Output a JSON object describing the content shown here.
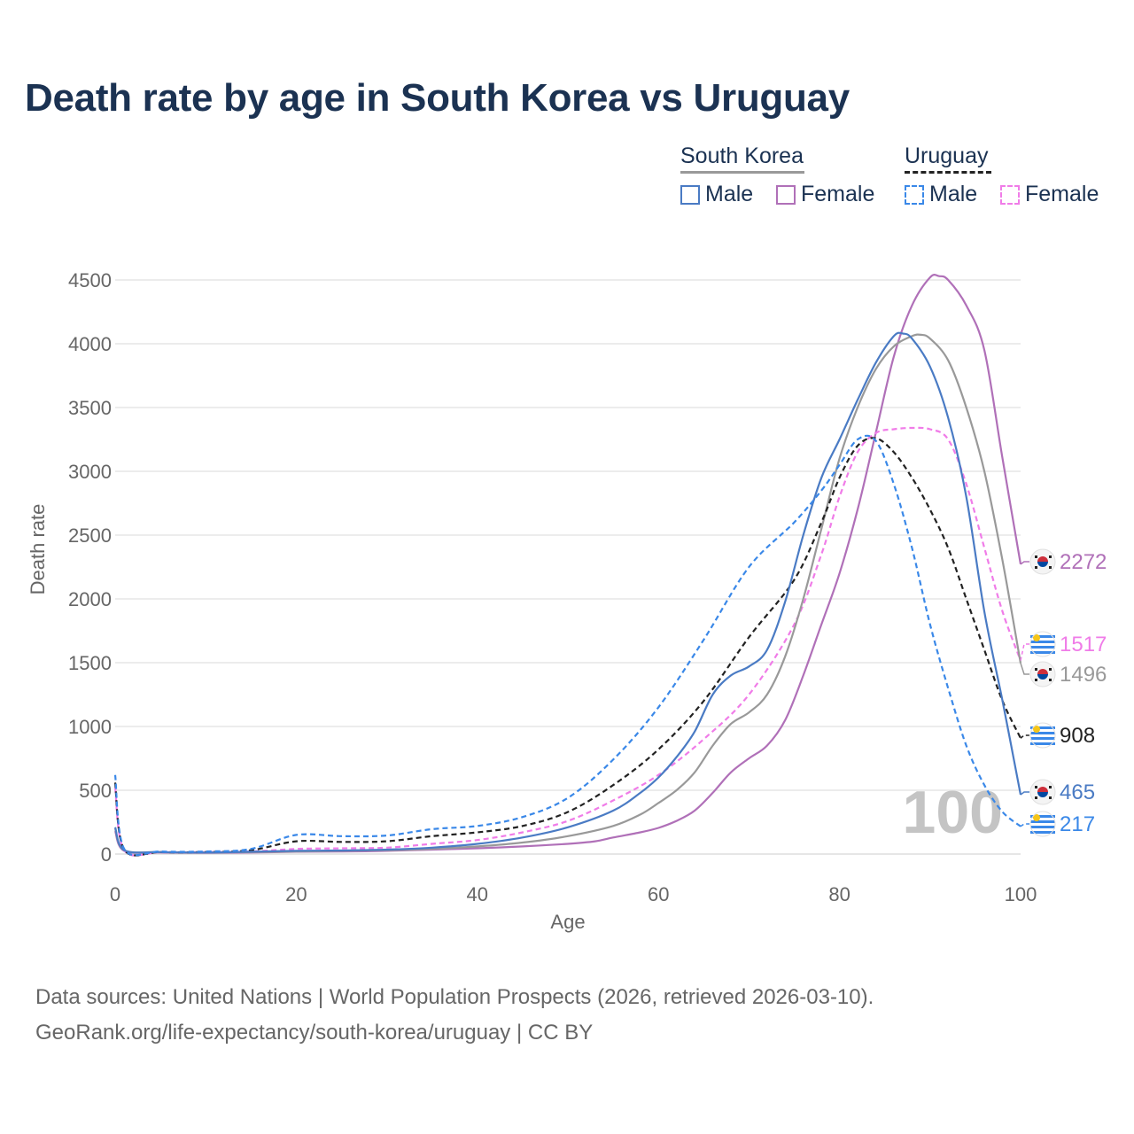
{
  "title": "Death rate by age in South Korea vs Uruguay",
  "legend": {
    "groups": [
      {
        "name": "South Korea",
        "items": [
          {
            "label": "Male",
            "color": "#4a7bc4",
            "dashed": false
          },
          {
            "label": "Female",
            "color": "#b070b8",
            "dashed": false
          }
        ]
      },
      {
        "name": "Uruguay",
        "items": [
          {
            "label": "Male",
            "color": "#3a88e8",
            "dashed": true
          },
          {
            "label": "Female",
            "color": "#f07ce8",
            "dashed": true
          }
        ]
      }
    ]
  },
  "watermark": "100",
  "sources": {
    "line1": "Data sources: United Nations | World Population Prospects (2026, retrieved 2026-03-10).",
    "line2": "GeoRank.org/life-expectancy/south-korea/uruguay | CC BY"
  },
  "chart_data": {
    "type": "line",
    "title": "Death rate by age in South Korea vs Uruguay",
    "xlabel": "Age",
    "ylabel": "Death rate",
    "xlim": [
      0,
      100
    ],
    "ylim": [
      0,
      4500
    ],
    "xticks": [
      0,
      20,
      40,
      60,
      80,
      100
    ],
    "yticks": [
      0,
      500,
      1000,
      1500,
      2000,
      2500,
      3000,
      3500,
      4000,
      4500
    ],
    "series": [
      {
        "name": "South Korea Female",
        "country": "South Korea",
        "color": "#b070b8",
        "dashed": false,
        "end_label": "2272",
        "end_value": 2272,
        "points": [
          [
            0,
            180
          ],
          [
            1,
            25
          ],
          [
            5,
            12
          ],
          [
            10,
            10
          ],
          [
            15,
            12
          ],
          [
            20,
            18
          ],
          [
            25,
            20
          ],
          [
            30,
            25
          ],
          [
            35,
            35
          ],
          [
            40,
            45
          ],
          [
            45,
            60
          ],
          [
            50,
            80
          ],
          [
            53,
            100
          ],
          [
            55,
            130
          ],
          [
            58,
            170
          ],
          [
            60,
            205
          ],
          [
            62,
            260
          ],
          [
            64,
            340
          ],
          [
            66,
            480
          ],
          [
            68,
            640
          ],
          [
            70,
            750
          ],
          [
            72,
            850
          ],
          [
            74,
            1050
          ],
          [
            76,
            1400
          ],
          [
            78,
            1800
          ],
          [
            80,
            2200
          ],
          [
            82,
            2700
          ],
          [
            84,
            3300
          ],
          [
            86,
            3900
          ],
          [
            88,
            4300
          ],
          [
            90,
            4520
          ],
          [
            91,
            4530
          ],
          [
            92,
            4500
          ],
          [
            94,
            4300
          ],
          [
            96,
            3950
          ],
          [
            98,
            3100
          ],
          [
            100,
            2272
          ]
        ]
      },
      {
        "name": "Uruguay Female",
        "country": "Uruguay",
        "color": "#f07ce8",
        "dashed": true,
        "end_label": "1517",
        "end_value": 1517,
        "points": [
          [
            0,
            520
          ],
          [
            1,
            30
          ],
          [
            5,
            15
          ],
          [
            10,
            15
          ],
          [
            15,
            20
          ],
          [
            20,
            40
          ],
          [
            25,
            45
          ],
          [
            30,
            50
          ],
          [
            35,
            80
          ],
          [
            40,
            110
          ],
          [
            45,
            170
          ],
          [
            50,
            260
          ],
          [
            55,
            420
          ],
          [
            60,
            620
          ],
          [
            65,
            900
          ],
          [
            70,
            1250
          ],
          [
            75,
            1800
          ],
          [
            78,
            2350
          ],
          [
            80,
            2800
          ],
          [
            82,
            3150
          ],
          [
            84,
            3300
          ],
          [
            86,
            3330
          ],
          [
            88,
            3340
          ],
          [
            90,
            3330
          ],
          [
            92,
            3250
          ],
          [
            94,
            2900
          ],
          [
            96,
            2400
          ],
          [
            98,
            1900
          ],
          [
            100,
            1517
          ]
        ]
      },
      {
        "name": "South Korea Total",
        "country": "South Korea",
        "color": "#999999",
        "dashed": false,
        "end_label": "1496",
        "end_value": 1496,
        "points": [
          [
            0,
            200
          ],
          [
            1,
            30
          ],
          [
            5,
            15
          ],
          [
            10,
            12
          ],
          [
            15,
            15
          ],
          [
            20,
            20
          ],
          [
            25,
            25
          ],
          [
            30,
            30
          ],
          [
            35,
            40
          ],
          [
            40,
            60
          ],
          [
            45,
            90
          ],
          [
            50,
            140
          ],
          [
            55,
            220
          ],
          [
            58,
            310
          ],
          [
            60,
            400
          ],
          [
            62,
            500
          ],
          [
            64,
            640
          ],
          [
            66,
            850
          ],
          [
            68,
            1020
          ],
          [
            70,
            1110
          ],
          [
            72,
            1250
          ],
          [
            74,
            1550
          ],
          [
            76,
            2000
          ],
          [
            78,
            2550
          ],
          [
            80,
            3100
          ],
          [
            82,
            3500
          ],
          [
            84,
            3800
          ],
          [
            86,
            3980
          ],
          [
            88,
            4060
          ],
          [
            89,
            4070
          ],
          [
            90,
            4040
          ],
          [
            92,
            3870
          ],
          [
            94,
            3500
          ],
          [
            96,
            3000
          ],
          [
            98,
            2300
          ],
          [
            100,
            1496
          ]
        ]
      },
      {
        "name": "Uruguay Total",
        "country": "Uruguay",
        "color": "#222222",
        "dashed": true,
        "end_label": "908",
        "end_value": 908,
        "points": [
          [
            0,
            560
          ],
          [
            1,
            35
          ],
          [
            5,
            15
          ],
          [
            10,
            15
          ],
          [
            15,
            30
          ],
          [
            20,
            100
          ],
          [
            25,
            95
          ],
          [
            30,
            100
          ],
          [
            35,
            140
          ],
          [
            40,
            170
          ],
          [
            45,
            220
          ],
          [
            50,
            330
          ],
          [
            55,
            540
          ],
          [
            60,
            820
          ],
          [
            65,
            1200
          ],
          [
            70,
            1700
          ],
          [
            75,
            2150
          ],
          [
            78,
            2600
          ],
          [
            80,
            2950
          ],
          [
            82,
            3200
          ],
          [
            84,
            3260
          ],
          [
            86,
            3150
          ],
          [
            88,
            2950
          ],
          [
            90,
            2700
          ],
          [
            92,
            2400
          ],
          [
            94,
            2000
          ],
          [
            96,
            1600
          ],
          [
            98,
            1200
          ],
          [
            100,
            908
          ]
        ]
      },
      {
        "name": "South Korea Male",
        "country": "South Korea",
        "color": "#4a7bc4",
        "dashed": false,
        "end_label": "465",
        "end_value": 465,
        "points": [
          [
            0,
            210
          ],
          [
            1,
            30
          ],
          [
            5,
            15
          ],
          [
            10,
            12
          ],
          [
            15,
            18
          ],
          [
            20,
            25
          ],
          [
            25,
            28
          ],
          [
            30,
            35
          ],
          [
            35,
            50
          ],
          [
            40,
            80
          ],
          [
            45,
            130
          ],
          [
            50,
            210
          ],
          [
            55,
            340
          ],
          [
            58,
            480
          ],
          [
            60,
            600
          ],
          [
            62,
            760
          ],
          [
            64,
            960
          ],
          [
            66,
            1250
          ],
          [
            68,
            1400
          ],
          [
            70,
            1470
          ],
          [
            72,
            1600
          ],
          [
            74,
            1980
          ],
          [
            76,
            2500
          ],
          [
            78,
            2950
          ],
          [
            80,
            3250
          ],
          [
            82,
            3560
          ],
          [
            84,
            3850
          ],
          [
            86,
            4060
          ],
          [
            87,
            4080
          ],
          [
            88,
            4040
          ],
          [
            90,
            3820
          ],
          [
            92,
            3420
          ],
          [
            94,
            2800
          ],
          [
            96,
            1900
          ],
          [
            98,
            1200
          ],
          [
            100,
            465
          ]
        ]
      },
      {
        "name": "Uruguay Male",
        "country": "Uruguay",
        "color": "#3a88e8",
        "dashed": true,
        "end_label": "217",
        "end_value": 217,
        "points": [
          [
            0,
            620
          ],
          [
            1,
            40
          ],
          [
            5,
            20
          ],
          [
            10,
            20
          ],
          [
            15,
            40
          ],
          [
            20,
            150
          ],
          [
            25,
            140
          ],
          [
            30,
            145
          ],
          [
            35,
            195
          ],
          [
            40,
            220
          ],
          [
            45,
            290
          ],
          [
            50,
            440
          ],
          [
            55,
            740
          ],
          [
            60,
            1150
          ],
          [
            65,
            1680
          ],
          [
            70,
            2250
          ],
          [
            75,
            2600
          ],
          [
            78,
            2850
          ],
          [
            80,
            3050
          ],
          [
            82,
            3250
          ],
          [
            84,
            3240
          ],
          [
            86,
            2900
          ],
          [
            88,
            2400
          ],
          [
            90,
            1800
          ],
          [
            92,
            1300
          ],
          [
            94,
            850
          ],
          [
            96,
            540
          ],
          [
            98,
            330
          ],
          [
            100,
            217
          ]
        ]
      }
    ]
  }
}
